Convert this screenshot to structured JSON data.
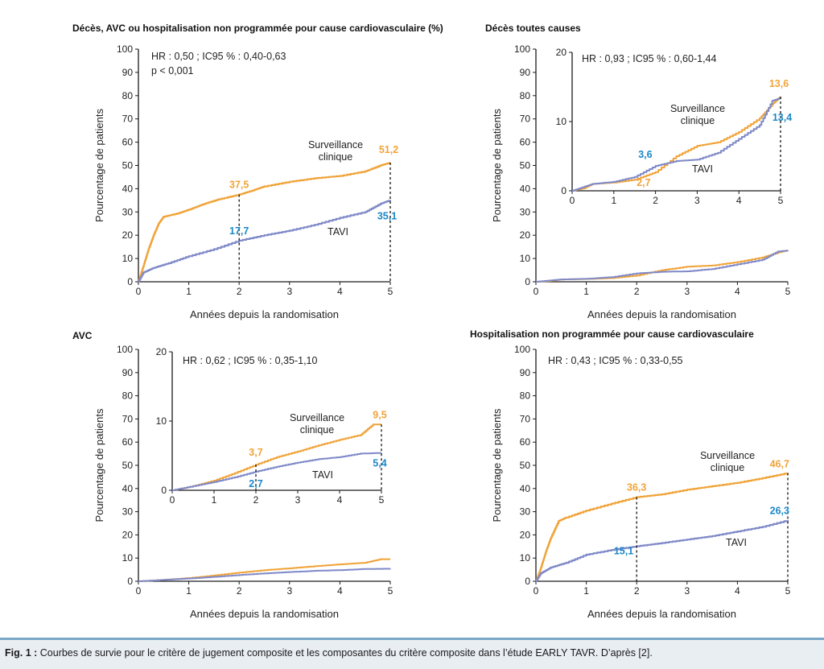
{
  "colors": {
    "surveillance": "#f0a338",
    "tavi": "#7f89c8",
    "label_orange": "#f0a338",
    "label_blue": "#1b87c8",
    "axis": "#1a1a1a"
  },
  "caption": {
    "label": "Fig. 1 :",
    "text": "Courbes de survie pour le critère de jugement composite et les composantes du critère composite dans l’étude EARLY TAVR. D’après [2]."
  },
  "chart_data": [
    {
      "id": "composite",
      "type": "line",
      "title": "Décès, AVC ou hospitalisation non programmée pour cause cardiovasculaire (%)",
      "xlabel": "Années depuis la randomisation",
      "ylabel": "Pourcentage de patients",
      "xlim": [
        0,
        5
      ],
      "ylim": [
        0,
        100
      ],
      "xticks": [
        "0",
        "1",
        "2",
        "3",
        "4",
        "5"
      ],
      "yticks": [
        "0",
        "10",
        "20",
        "30",
        "40",
        "50",
        "60",
        "70",
        "80",
        "90",
        "100"
      ],
      "annotation": [
        "HR : 0,50 ; IC95 % : 0,40-0,63",
        "p < 0,001"
      ],
      "series": [
        {
          "label_lines": [
            "Surveillance",
            "clinique"
          ],
          "color": "#f0a338",
          "x": [
            0,
            0.1,
            0.2,
            0.3,
            0.4,
            0.5,
            0.8,
            1.0,
            1.3,
            1.6,
            2.0,
            2.3,
            2.5,
            3.0,
            3.5,
            4.0,
            4.5,
            4.8,
            5.0
          ],
          "y": [
            0,
            7,
            14,
            20,
            25,
            28,
            29.5,
            31,
            33.5,
            35.5,
            37.5,
            39.5,
            41,
            43,
            44.5,
            45.5,
            47.5,
            50,
            51.2
          ]
        },
        {
          "label_lines": [
            "TAVI"
          ],
          "color": "#7f89c8",
          "x": [
            0,
            0.1,
            0.3,
            0.6,
            1.0,
            1.5,
            2.0,
            2.5,
            3.0,
            3.5,
            4.0,
            4.5,
            4.8,
            5.0
          ],
          "y": [
            0,
            4,
            6,
            8,
            11,
            14,
            17.7,
            20,
            22,
            24.5,
            27.5,
            30,
            33.5,
            35.1
          ]
        }
      ],
      "value_labels": [
        {
          "text": "37,5",
          "color": "orange"
        },
        {
          "text": "51,2",
          "color": "orange"
        },
        {
          "text": "17,7",
          "color": "blue"
        },
        {
          "text": "35,1",
          "color": "blue"
        }
      ]
    },
    {
      "id": "deces",
      "type": "line",
      "title": "Décès toutes causes",
      "xlabel": "Années depuis la randomisation",
      "ylabel": "Pourcentage de patients",
      "xlim": [
        0,
        5
      ],
      "ylim": [
        0,
        100
      ],
      "xticks": [
        "0",
        "1",
        "2",
        "3",
        "4",
        "5"
      ],
      "yticks": [
        "0",
        "10",
        "20",
        "30",
        "40",
        "50",
        "60",
        "70",
        "80",
        "90",
        "100"
      ],
      "annotation": [
        "HR : 0,93 ; IC95 % : 0,60-1,44"
      ],
      "series": [
        {
          "label_lines": [
            "Surveillance",
            "clinique"
          ],
          "color": "#f0a338",
          "x": [
            0,
            0.3,
            0.5,
            1.0,
            1.5,
            2.0,
            2.5,
            3.0,
            3.5,
            4.0,
            4.5,
            4.8,
            5.0
          ],
          "y": [
            0,
            0.4,
            1.0,
            1.2,
            1.6,
            2.7,
            5.0,
            6.5,
            7.0,
            8.5,
            10.5,
            12.5,
            13.6
          ]
        },
        {
          "label_lines": [
            "TAVI"
          ],
          "color": "#7f89c8",
          "x": [
            0,
            0.3,
            0.5,
            1.0,
            1.5,
            2.0,
            2.5,
            3.0,
            3.5,
            4.0,
            4.5,
            4.8,
            5.0
          ],
          "y": [
            0,
            0.6,
            1.0,
            1.3,
            2.0,
            3.6,
            4.3,
            4.5,
            5.5,
            7.5,
            9.5,
            13.0,
            13.4
          ]
        }
      ],
      "inset": {
        "xlim": [
          0,
          5
        ],
        "ylim": [
          0,
          20
        ],
        "xticks": [
          "0",
          "1",
          "2",
          "3",
          "4",
          "5"
        ],
        "yticks": [
          "0",
          "10",
          "20"
        ]
      },
      "value_labels": [
        {
          "text": "13,6",
          "color": "orange"
        },
        {
          "text": "13,4",
          "color": "blue"
        },
        {
          "text": "3,6",
          "color": "blue"
        },
        {
          "text": "2,7",
          "color": "orange"
        }
      ]
    },
    {
      "id": "avc",
      "type": "line",
      "title": "AVC",
      "xlabel": "Années depuis la randomisation",
      "ylabel": "Pourcentage de patients",
      "xlim": [
        0,
        5
      ],
      "ylim": [
        0,
        100
      ],
      "xticks": [
        "0",
        "1",
        "2",
        "3",
        "4",
        "5"
      ],
      "yticks": [
        "0",
        "10",
        "20",
        "30",
        "40",
        "50",
        "60",
        "70",
        "80",
        "90",
        "100"
      ],
      "annotation": [
        "HR : 0,62 ; IC95 % : 0,35-1,10"
      ],
      "series": [
        {
          "label_lines": [
            "Surveillance",
            "clinique"
          ],
          "color": "#f0a338",
          "x": [
            0,
            0.5,
            1.0,
            1.5,
            2.0,
            2.5,
            3.0,
            3.5,
            4.0,
            4.5,
            4.8,
            5.0
          ],
          "y": [
            0,
            0.6,
            1.4,
            2.5,
            3.7,
            4.8,
            5.6,
            6.5,
            7.3,
            8.0,
            9.5,
            9.5
          ]
        },
        {
          "label_lines": [
            "TAVI"
          ],
          "color": "#7f89c8",
          "x": [
            0,
            0.5,
            1.0,
            1.5,
            2.0,
            2.5,
            3.0,
            3.5,
            4.0,
            4.5,
            5.0
          ],
          "y": [
            0,
            0.6,
            1.2,
            1.9,
            2.7,
            3.4,
            4.0,
            4.5,
            4.8,
            5.3,
            5.4
          ]
        }
      ],
      "inset": {
        "xlim": [
          0,
          5
        ],
        "ylim": [
          0,
          20
        ],
        "xticks": [
          "0",
          "1",
          "2",
          "3",
          "4",
          "5"
        ],
        "yticks": [
          "0",
          "10",
          "20"
        ]
      },
      "value_labels": [
        {
          "text": "3,7",
          "color": "orange"
        },
        {
          "text": "9,5",
          "color": "orange"
        },
        {
          "text": "2,7",
          "color": "blue"
        },
        {
          "text": "5,4",
          "color": "blue"
        }
      ]
    },
    {
      "id": "hospitalisation",
      "type": "line",
      "title": "Hospitalisation non programmée pour cause cardiovasculaire",
      "xlabel": "Années depuis la randomisation",
      "ylabel": "Pourcentage de patients",
      "xlim": [
        0,
        5
      ],
      "ylim": [
        0,
        100
      ],
      "xticks": [
        "0",
        "1",
        "2",
        "3",
        "4",
        "5"
      ],
      "yticks": [
        "0",
        "10",
        "20",
        "30",
        "40",
        "50",
        "60",
        "70",
        "80",
        "90",
        "100"
      ],
      "annotation": [
        "HR : 0,43 ; IC95 % : 0,33-0,55"
      ],
      "series": [
        {
          "label_lines": [
            "Surveillance",
            "clinique"
          ],
          "color": "#f0a338",
          "x": [
            0,
            0.1,
            0.2,
            0.3,
            0.45,
            0.6,
            1.0,
            1.5,
            2.0,
            2.5,
            3.0,
            3.5,
            4.0,
            4.5,
            5.0
          ],
          "y": [
            0,
            6,
            13,
            19,
            26,
            27.5,
            30.5,
            33.5,
            36.3,
            37.5,
            39.5,
            41,
            42.5,
            44.5,
            46.7
          ]
        },
        {
          "label_lines": [
            "TAVI"
          ],
          "color": "#7f89c8",
          "x": [
            0,
            0.1,
            0.3,
            0.6,
            1.0,
            1.5,
            2.0,
            2.5,
            3.0,
            3.5,
            4.0,
            4.5,
            5.0
          ],
          "y": [
            0,
            3.5,
            6,
            8,
            11.5,
            13.5,
            15.1,
            16.5,
            18,
            19.5,
            21.5,
            23.5,
            26.3
          ]
        }
      ],
      "value_labels": [
        {
          "text": "36,3",
          "color": "orange"
        },
        {
          "text": "46,7",
          "color": "orange"
        },
        {
          "text": "15,1",
          "color": "blue"
        },
        {
          "text": "26,3",
          "color": "blue"
        }
      ]
    }
  ]
}
